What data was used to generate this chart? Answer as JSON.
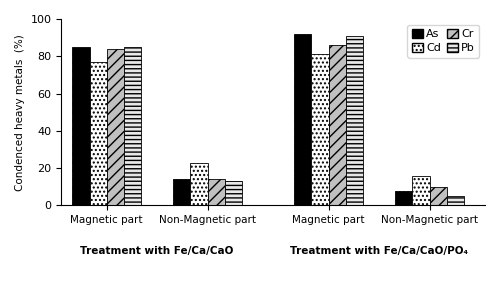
{
  "x_labels": [
    "Magnetic part",
    "Non-Magnetic part",
    "Magnetic part",
    "Non-Magnetic part"
  ],
  "x_group_labels": [
    "Treatment with Fe/Ca/CaO",
    "Treatment with Fe/Ca/CaO/PO₄"
  ],
  "metals": [
    "As",
    "Cd",
    "Cr",
    "Pb"
  ],
  "values": {
    "As": [
      85,
      14,
      92,
      8
    ],
    "Cd": [
      77,
      23,
      81,
      16
    ],
    "Cr": [
      84,
      14,
      86,
      10
    ],
    "Pb": [
      85,
      13,
      91,
      5
    ]
  },
  "bar_width": 0.17,
  "group_centers": [
    0.35,
    1.35,
    2.55,
    3.55
  ],
  "ylim": [
    0,
    100
  ],
  "yticks": [
    0,
    20,
    40,
    60,
    80,
    100
  ],
  "ylabel": "Condenced heavy metals  (%)",
  "background_color": "white",
  "figsize": [
    5.0,
    3.07
  ],
  "dpi": 100
}
